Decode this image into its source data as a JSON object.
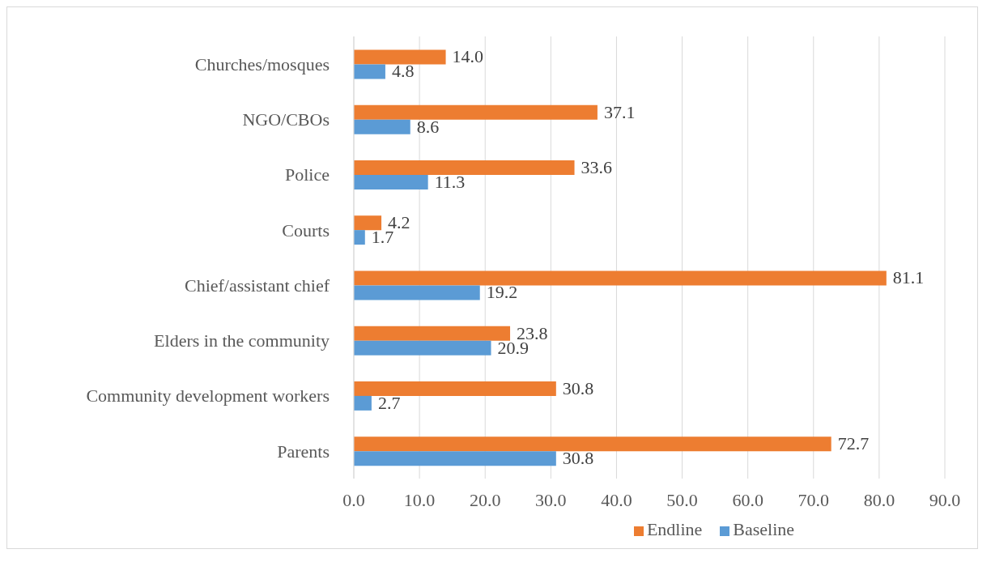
{
  "chart_data": {
    "type": "bar",
    "orientation": "horizontal",
    "categories": [
      "Churches/mosques",
      "NGO/CBOs",
      "Police",
      "Courts",
      "Chief/assistant chief",
      "Elders in the community",
      "Community development workers",
      "Parents"
    ],
    "series": [
      {
        "name": "Endline",
        "color": "#ed7d31",
        "values": [
          14.0,
          37.1,
          33.6,
          4.2,
          81.1,
          23.8,
          30.8,
          72.7
        ],
        "value_labels": [
          "14.0",
          "37.1",
          "33.6",
          "4.2",
          "81.1",
          "23.8",
          "30.8",
          "72.7"
        ]
      },
      {
        "name": "Baseline",
        "color": "#5b9bd5",
        "values": [
          4.8,
          8.6,
          11.3,
          1.7,
          19.2,
          20.9,
          2.7,
          30.8
        ],
        "value_labels": [
          "4.8",
          "8.6",
          "11.3",
          "1.7",
          "19.2",
          "20.9",
          "2.7",
          "30.8"
        ]
      }
    ],
    "xlim": [
      0,
      90
    ],
    "xticks": [
      {
        "value": 0,
        "label": "0.0"
      },
      {
        "value": 10,
        "label": "10.0"
      },
      {
        "value": 20,
        "label": "20.0"
      },
      {
        "value": 30,
        "label": "30.0"
      },
      {
        "value": 40,
        "label": "40.0"
      },
      {
        "value": 50,
        "label": "50.0"
      },
      {
        "value": 60,
        "label": "60.0"
      },
      {
        "value": 70,
        "label": "70.0"
      },
      {
        "value": 80,
        "label": "80.0"
      },
      {
        "value": 90,
        "label": "90.0"
      }
    ],
    "grid": "x",
    "legend": "bottom"
  }
}
